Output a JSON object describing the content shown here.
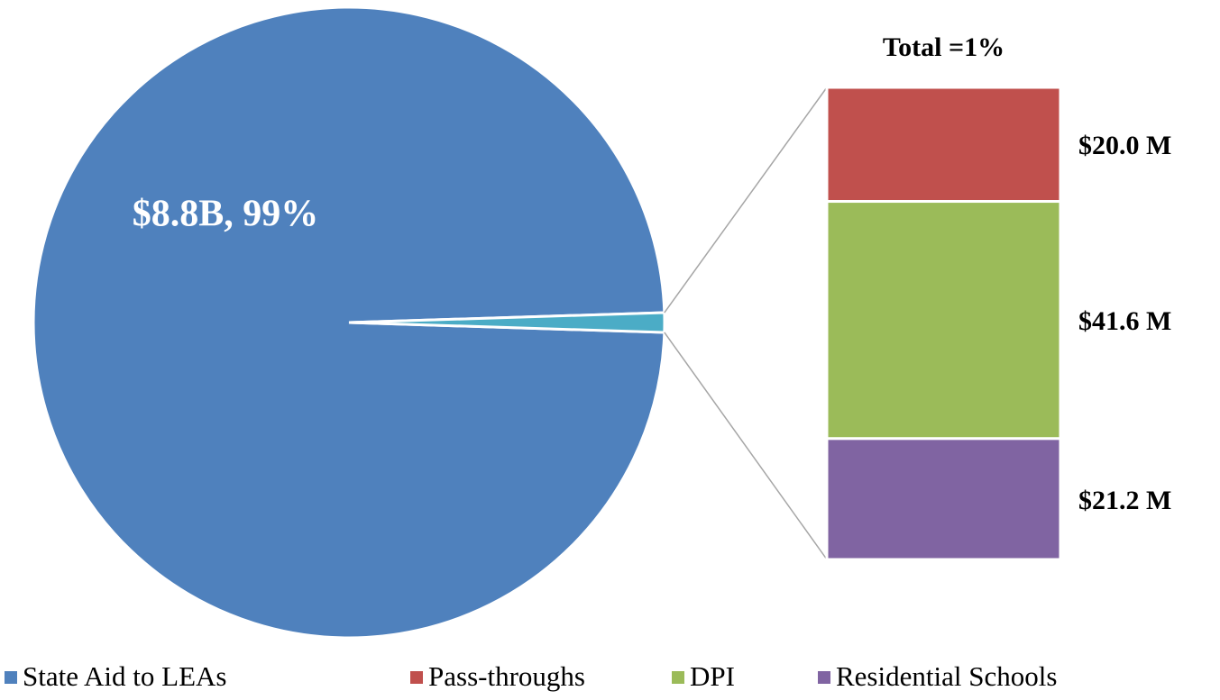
{
  "chart_data": {
    "type": "bar-of-pie",
    "pie": {
      "names": [
        "State Aid to LEAs",
        null
      ],
      "values": [
        99,
        1
      ],
      "value_labels": [
        "$8.8B, 99%",
        "Total =1%"
      ],
      "colors": [
        "#4f81bd",
        "#4bacc6"
      ]
    },
    "bar": {
      "names": [
        "Pass-throughs",
        "DPI",
        "Residential Schools"
      ],
      "values": [
        20.0,
        41.6,
        21.2
      ],
      "value_labels": [
        "$20.0 M",
        "$41.6 M",
        "$21.2 M"
      ],
      "colors": [
        "#c0504d",
        "#9bbb59",
        "#8064a2"
      ]
    }
  }
}
